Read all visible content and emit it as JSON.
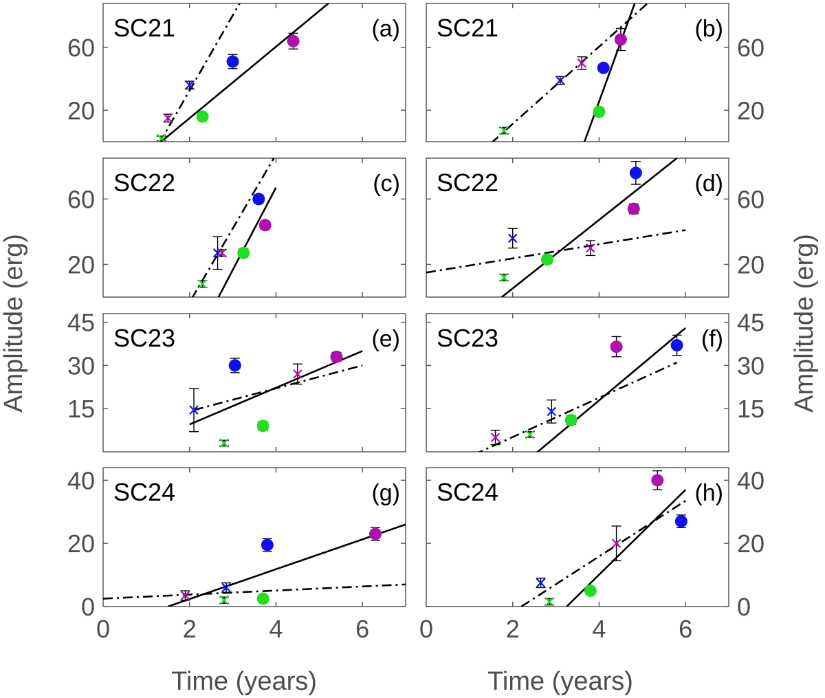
{
  "figure": {
    "xlabel": "Time (years)",
    "ylabel": "Amplitude (erg)"
  },
  "colors": {
    "green": "#22dd22",
    "blue": "#1010ee",
    "magenta": "#b010b0",
    "line": "#000000",
    "frame": "#5a5a5a",
    "text": "#4d4d4d"
  },
  "chart_data": [
    {
      "panel": "(a)",
      "cycle": "SC21",
      "type": "scatter",
      "column": "left",
      "row": 0,
      "xlim": [
        0,
        7
      ],
      "ylim": [
        0,
        88
      ],
      "xticks": [],
      "yticks": [
        20,
        60
      ],
      "ytick_side": "left",
      "points": [
        {
          "x": 1.35,
          "y": 2,
          "err": 1.5,
          "marker": "x",
          "color": "green"
        },
        {
          "x": 1.5,
          "y": 15,
          "err": 2.5,
          "marker": "x",
          "color": "magenta"
        },
        {
          "x": 2.0,
          "y": 36,
          "err": 2.5,
          "marker": "x",
          "color": "blue"
        },
        {
          "x": 2.3,
          "y": 16,
          "err": 2,
          "marker": "o",
          "color": "green"
        },
        {
          "x": 3.0,
          "y": 51,
          "err": 4.5,
          "marker": "o",
          "color": "blue"
        },
        {
          "x": 4.4,
          "y": 64,
          "err": 5,
          "marker": "o",
          "color": "magenta"
        }
      ],
      "lines": [
        {
          "style": "solid",
          "x": [
            1.3,
            5.3
          ],
          "y": [
            -1,
            90
          ]
        },
        {
          "style": "dashdot",
          "x": [
            1.3,
            3.2
          ],
          "y": [
            -1,
            90
          ]
        }
      ]
    },
    {
      "panel": "(b)",
      "cycle": "SC21",
      "type": "scatter",
      "column": "right",
      "row": 0,
      "xlim": [
        0,
        7
      ],
      "ylim": [
        0,
        88
      ],
      "xticks": [],
      "yticks": [
        20,
        60
      ],
      "ytick_side": "right",
      "points": [
        {
          "x": 1.8,
          "y": 7,
          "err": 2,
          "marker": "x",
          "color": "green"
        },
        {
          "x": 3.1,
          "y": 39,
          "err": 2.5,
          "marker": "x",
          "color": "blue"
        },
        {
          "x": 3.6,
          "y": 50,
          "err": 4,
          "marker": "x",
          "color": "magenta"
        },
        {
          "x": 4.0,
          "y": 19,
          "err": 2.5,
          "marker": "o",
          "color": "green"
        },
        {
          "x": 4.1,
          "y": 47,
          "err": 2,
          "marker": "o",
          "color": "blue"
        },
        {
          "x": 4.5,
          "y": 65,
          "err": 7,
          "marker": "o",
          "color": "magenta"
        }
      ],
      "lines": [
        {
          "style": "solid",
          "x": [
            3.65,
            4.85
          ],
          "y": [
            -1,
            90
          ]
        },
        {
          "style": "dashdot",
          "x": [
            1.5,
            5.2
          ],
          "y": [
            -1,
            90
          ]
        }
      ]
    },
    {
      "panel": "(c)",
      "cycle": "SC22",
      "type": "scatter",
      "column": "left",
      "row": 1,
      "xlim": [
        0,
        7
      ],
      "ylim": [
        0,
        85
      ],
      "xticks": [],
      "yticks": [
        20,
        60
      ],
      "ytick_side": "left",
      "points": [
        {
          "x": 2.3,
          "y": 8,
          "err": 2,
          "marker": "x",
          "color": "green"
        },
        {
          "x": 2.65,
          "y": 27,
          "err": 10,
          "marker": "x",
          "color": "blue"
        },
        {
          "x": 2.75,
          "y": 27,
          "err": 2,
          "marker": "x",
          "color": "magenta"
        },
        {
          "x": 3.25,
          "y": 27,
          "err": 2.5,
          "marker": "o",
          "color": "green"
        },
        {
          "x": 3.6,
          "y": 60,
          "err": 2.5,
          "marker": "o",
          "color": "blue"
        },
        {
          "x": 3.75,
          "y": 44,
          "err": 2.5,
          "marker": "o",
          "color": "magenta"
        }
      ],
      "lines": [
        {
          "style": "solid",
          "x": [
            2.65,
            4.0
          ],
          "y": [
            -1,
            67
          ]
        },
        {
          "style": "dashdot",
          "x": [
            2.05,
            3.95
          ],
          "y": [
            -1,
            85
          ]
        }
      ]
    },
    {
      "panel": "(d)",
      "cycle": "SC22",
      "type": "scatter",
      "column": "right",
      "row": 1,
      "xlim": [
        0,
        7
      ],
      "ylim": [
        0,
        85
      ],
      "xticks": [],
      "yticks": [
        20,
        60
      ],
      "ytick_side": "right",
      "points": [
        {
          "x": 1.8,
          "y": 12,
          "err": 2,
          "marker": "x",
          "color": "green"
        },
        {
          "x": 2.0,
          "y": 36,
          "err": 6,
          "marker": "x",
          "color": "blue"
        },
        {
          "x": 2.8,
          "y": 23,
          "err": 2.5,
          "marker": "o",
          "color": "green"
        },
        {
          "x": 3.8,
          "y": 30,
          "err": 4.5,
          "marker": "x",
          "color": "magenta"
        },
        {
          "x": 4.8,
          "y": 54,
          "err": 3,
          "marker": "o",
          "color": "magenta"
        },
        {
          "x": 4.85,
          "y": 76,
          "err": 7,
          "marker": "o",
          "color": "blue"
        }
      ],
      "lines": [
        {
          "style": "solid",
          "x": [
            1.7,
            5.8
          ],
          "y": [
            -1,
            85
          ]
        },
        {
          "style": "dashdot",
          "x": [
            0,
            6.0
          ],
          "y": [
            15,
            41
          ]
        }
      ]
    },
    {
      "panel": "(e)",
      "cycle": "SC23",
      "type": "scatter",
      "column": "left",
      "row": 2,
      "xlim": [
        0,
        7
      ],
      "ylim": [
        0,
        48
      ],
      "xticks": [],
      "yticks": [
        15,
        30,
        45
      ],
      "ytick_side": "left",
      "points": [
        {
          "x": 2.8,
          "y": 3,
          "err": 1,
          "marker": "x",
          "color": "green"
        },
        {
          "x": 2.1,
          "y": 14.5,
          "err": 7.5,
          "marker": "x",
          "color": "blue"
        },
        {
          "x": 3.05,
          "y": 30,
          "err": 2.5,
          "marker": "o",
          "color": "blue"
        },
        {
          "x": 3.7,
          "y": 9,
          "err": 1.5,
          "marker": "o",
          "color": "green"
        },
        {
          "x": 4.5,
          "y": 27,
          "err": 3.5,
          "marker": "x",
          "color": "magenta"
        },
        {
          "x": 5.4,
          "y": 33,
          "err": 1.5,
          "marker": "o",
          "color": "magenta"
        }
      ],
      "lines": [
        {
          "style": "solid",
          "x": [
            2.0,
            6.0
          ],
          "y": [
            9.5,
            35
          ]
        },
        {
          "style": "dashdot",
          "x": [
            2.1,
            6.0
          ],
          "y": [
            14.5,
            30
          ]
        }
      ]
    },
    {
      "panel": "(f)",
      "cycle": "SC23",
      "type": "scatter",
      "column": "right",
      "row": 2,
      "xlim": [
        0,
        7
      ],
      "ylim": [
        0,
        48
      ],
      "xticks": [],
      "yticks": [
        15,
        30,
        45
      ],
      "ytick_side": "right",
      "points": [
        {
          "x": 1.6,
          "y": 5,
          "err": 2.5,
          "marker": "x",
          "color": "magenta"
        },
        {
          "x": 2.4,
          "y": 6,
          "err": 1,
          "marker": "x",
          "color": "green"
        },
        {
          "x": 2.9,
          "y": 14,
          "err": 4,
          "marker": "x",
          "color": "blue"
        },
        {
          "x": 3.35,
          "y": 11,
          "err": 1.5,
          "marker": "o",
          "color": "green"
        },
        {
          "x": 4.4,
          "y": 36.5,
          "err": 3.5,
          "marker": "o",
          "color": "magenta"
        },
        {
          "x": 5.8,
          "y": 37,
          "err": 3.5,
          "marker": "o",
          "color": "blue"
        }
      ],
      "lines": [
        {
          "style": "solid",
          "x": [
            2.5,
            6.0
          ],
          "y": [
            -1,
            43
          ]
        },
        {
          "style": "dashdot",
          "x": [
            1.1,
            5.8
          ],
          "y": [
            -1,
            31
          ]
        }
      ]
    },
    {
      "panel": "(g)",
      "cycle": "SC24",
      "type": "scatter",
      "column": "left",
      "row": 3,
      "xlim": [
        0,
        7
      ],
      "ylim": [
        0,
        44
      ],
      "xticks": [
        0,
        2,
        4,
        6
      ],
      "yticks": [
        0,
        20,
        40
      ],
      "ytick_side": "left",
      "points": [
        {
          "x": 1.9,
          "y": 3.5,
          "err": 1.5,
          "marker": "x",
          "color": "magenta"
        },
        {
          "x": 2.8,
          "y": 2,
          "err": 1,
          "marker": "x",
          "color": "green"
        },
        {
          "x": 2.85,
          "y": 6,
          "err": 1.5,
          "marker": "x",
          "color": "blue"
        },
        {
          "x": 3.7,
          "y": 2.5,
          "err": 1,
          "marker": "o",
          "color": "green"
        },
        {
          "x": 3.8,
          "y": 19.5,
          "err": 2,
          "marker": "o",
          "color": "blue"
        },
        {
          "x": 6.3,
          "y": 23,
          "err": 2,
          "marker": "o",
          "color": "magenta"
        }
      ],
      "lines": [
        {
          "style": "solid",
          "x": [
            1.5,
            7.0
          ],
          "y": [
            0,
            26
          ]
        },
        {
          "style": "dashdot",
          "x": [
            0,
            7.0
          ],
          "y": [
            2.5,
            7
          ]
        }
      ]
    },
    {
      "panel": "(h)",
      "cycle": "SC24",
      "type": "scatter",
      "column": "right",
      "row": 3,
      "xlim": [
        0,
        7
      ],
      "ylim": [
        0,
        44
      ],
      "xticks": [
        0,
        2,
        4,
        6
      ],
      "yticks": [
        0,
        20,
        40
      ],
      "ytick_side": "right",
      "points": [
        {
          "x": 2.65,
          "y": 7.5,
          "err": 1.5,
          "marker": "x",
          "color": "blue"
        },
        {
          "x": 2.85,
          "y": 1.5,
          "err": 1,
          "marker": "x",
          "color": "green"
        },
        {
          "x": 3.8,
          "y": 5,
          "err": 1,
          "marker": "o",
          "color": "green"
        },
        {
          "x": 4.4,
          "y": 20,
          "err": 5.5,
          "marker": "x",
          "color": "magenta"
        },
        {
          "x": 5.35,
          "y": 40,
          "err": 3,
          "marker": "o",
          "color": "magenta"
        },
        {
          "x": 5.9,
          "y": 27,
          "err": 2,
          "marker": "o",
          "color": "blue"
        }
      ],
      "lines": [
        {
          "style": "solid",
          "x": [
            3.25,
            6.0
          ],
          "y": [
            0,
            37
          ]
        },
        {
          "style": "dashdot",
          "x": [
            2.2,
            6.0
          ],
          "y": [
            0,
            33.5
          ]
        }
      ]
    }
  ]
}
